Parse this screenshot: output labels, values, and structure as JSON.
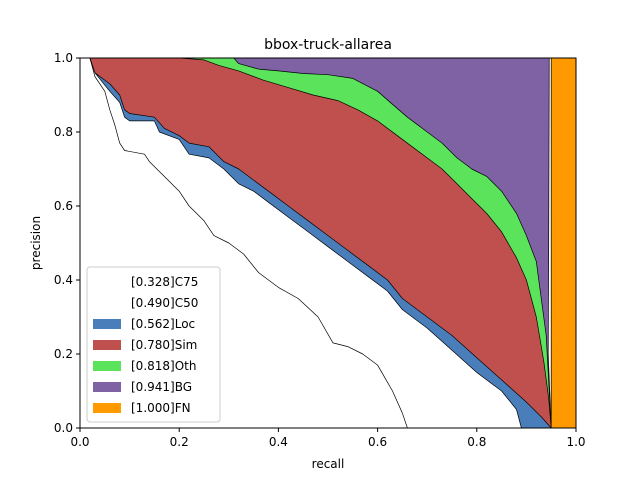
{
  "chart_data": {
    "type": "area",
    "title": "bbox-truck-allarea",
    "xlabel": "recall",
    "ylabel": "precision",
    "xlim": [
      0.0,
      1.0
    ],
    "ylim": [
      0.0,
      1.0
    ],
    "x_ticks": [
      "0.0",
      "0.2",
      "0.4",
      "0.6",
      "0.8",
      "1.0"
    ],
    "y_ticks": [
      "0.0",
      "0.2",
      "0.4",
      "0.6",
      "0.8",
      "1.0"
    ],
    "grid": false,
    "legend_position": "lower-left",
    "series": [
      {
        "name": "[1.000]FN",
        "color": "#FF9900",
        "filled": true,
        "points": [
          [
            0.0,
            1.0
          ],
          [
            0.95,
            1.0
          ],
          [
            0.95,
            0.0
          ],
          [
            1.0,
            0.0
          ],
          [
            1.0,
            1.0
          ]
        ]
      },
      {
        "name": "[0.941]BG",
        "color": "#7E62A4",
        "filled": true,
        "points": [
          [
            0.01,
            1.0
          ],
          [
            0.946,
            1.0
          ],
          [
            0.946,
            0.95
          ],
          [
            0.945,
            0.5
          ],
          [
            0.944,
            0.2
          ],
          [
            0.95,
            0.0
          ],
          [
            0.0,
            0.0
          ],
          [
            0.0,
            1.0
          ]
        ]
      },
      {
        "name": "[0.818]Oth",
        "color": "#5CE35C",
        "filled": true,
        "points": [
          [
            0.02,
            1.0
          ],
          [
            0.31,
            1.0
          ],
          [
            0.32,
            0.985
          ],
          [
            0.36,
            0.97
          ],
          [
            0.4,
            0.965
          ],
          [
            0.45,
            0.958
          ],
          [
            0.5,
            0.955
          ],
          [
            0.55,
            0.945
          ],
          [
            0.6,
            0.91
          ],
          [
            0.63,
            0.875
          ],
          [
            0.66,
            0.84
          ],
          [
            0.7,
            0.8
          ],
          [
            0.73,
            0.77
          ],
          [
            0.76,
            0.73
          ],
          [
            0.79,
            0.7
          ],
          [
            0.82,
            0.68
          ],
          [
            0.85,
            0.64
          ],
          [
            0.88,
            0.58
          ],
          [
            0.9,
            0.52
          ],
          [
            0.92,
            0.45
          ],
          [
            0.94,
            0.25
          ],
          [
            0.946,
            0.1
          ],
          [
            0.95,
            0.0
          ],
          [
            0.0,
            0.0
          ],
          [
            0.0,
            1.0
          ]
        ]
      },
      {
        "name": "[0.780]Sim",
        "color": "#C0504D",
        "filled": true,
        "points": [
          [
            0.02,
            1.0
          ],
          [
            0.15,
            1.0
          ],
          [
            0.2,
            1.0
          ],
          [
            0.25,
            0.995
          ],
          [
            0.28,
            0.98
          ],
          [
            0.32,
            0.965
          ],
          [
            0.37,
            0.94
          ],
          [
            0.42,
            0.92
          ],
          [
            0.47,
            0.9
          ],
          [
            0.52,
            0.885
          ],
          [
            0.56,
            0.86
          ],
          [
            0.6,
            0.83
          ],
          [
            0.64,
            0.79
          ],
          [
            0.67,
            0.76
          ],
          [
            0.7,
            0.73
          ],
          [
            0.73,
            0.7
          ],
          [
            0.76,
            0.66
          ],
          [
            0.79,
            0.62
          ],
          [
            0.82,
            0.58
          ],
          [
            0.85,
            0.53
          ],
          [
            0.88,
            0.46
          ],
          [
            0.9,
            0.4
          ],
          [
            0.92,
            0.3
          ],
          [
            0.935,
            0.18
          ],
          [
            0.945,
            0.08
          ],
          [
            0.95,
            0.0
          ],
          [
            0.0,
            0.0
          ],
          [
            0.0,
            1.0
          ]
        ]
      },
      {
        "name": "[0.562]Loc",
        "color": "#4A7EBB",
        "filled": true,
        "points": [
          [
            0.02,
            1.0
          ],
          [
            0.03,
            0.96
          ],
          [
            0.06,
            0.93
          ],
          [
            0.08,
            0.9
          ],
          [
            0.09,
            0.86
          ],
          [
            0.1,
            0.85
          ],
          [
            0.15,
            0.84
          ],
          [
            0.17,
            0.81
          ],
          [
            0.2,
            0.79
          ],
          [
            0.22,
            0.77
          ],
          [
            0.26,
            0.76
          ],
          [
            0.29,
            0.72
          ],
          [
            0.32,
            0.7
          ],
          [
            0.35,
            0.67
          ],
          [
            0.38,
            0.64
          ],
          [
            0.42,
            0.6
          ],
          [
            0.46,
            0.56
          ],
          [
            0.5,
            0.52
          ],
          [
            0.54,
            0.48
          ],
          [
            0.58,
            0.44
          ],
          [
            0.62,
            0.4
          ],
          [
            0.65,
            0.35
          ],
          [
            0.7,
            0.3
          ],
          [
            0.75,
            0.25
          ],
          [
            0.8,
            0.19
          ],
          [
            0.85,
            0.13
          ],
          [
            0.9,
            0.07
          ],
          [
            0.93,
            0.03
          ],
          [
            0.95,
            0.0
          ],
          [
            0.0,
            0.0
          ],
          [
            0.0,
            1.0
          ]
        ]
      },
      {
        "name": "[0.490]C50",
        "color": "#FFFFFF",
        "filled": true,
        "points": [
          [
            0.02,
            1.0
          ],
          [
            0.03,
            0.96
          ],
          [
            0.06,
            0.91
          ],
          [
            0.08,
            0.88
          ],
          [
            0.09,
            0.84
          ],
          [
            0.1,
            0.83
          ],
          [
            0.15,
            0.83
          ],
          [
            0.16,
            0.8
          ],
          [
            0.2,
            0.78
          ],
          [
            0.22,
            0.74
          ],
          [
            0.26,
            0.73
          ],
          [
            0.29,
            0.7
          ],
          [
            0.32,
            0.66
          ],
          [
            0.35,
            0.64
          ],
          [
            0.38,
            0.61
          ],
          [
            0.42,
            0.57
          ],
          [
            0.46,
            0.53
          ],
          [
            0.5,
            0.49
          ],
          [
            0.54,
            0.45
          ],
          [
            0.58,
            0.41
          ],
          [
            0.62,
            0.37
          ],
          [
            0.65,
            0.32
          ],
          [
            0.7,
            0.27
          ],
          [
            0.75,
            0.21
          ],
          [
            0.8,
            0.15
          ],
          [
            0.85,
            0.1
          ],
          [
            0.88,
            0.05
          ],
          [
            0.89,
            0.0
          ],
          [
            0.0,
            0.0
          ],
          [
            0.0,
            1.0
          ]
        ]
      },
      {
        "name": "[0.328]C75",
        "color": "#FFFFFF",
        "filled": false,
        "points": [
          [
            0.02,
            1.0
          ],
          [
            0.03,
            0.95
          ],
          [
            0.05,
            0.91
          ],
          [
            0.06,
            0.86
          ],
          [
            0.07,
            0.82
          ],
          [
            0.08,
            0.77
          ],
          [
            0.09,
            0.75
          ],
          [
            0.13,
            0.74
          ],
          [
            0.14,
            0.72
          ],
          [
            0.17,
            0.68
          ],
          [
            0.2,
            0.64
          ],
          [
            0.22,
            0.6
          ],
          [
            0.25,
            0.56
          ],
          [
            0.27,
            0.52
          ],
          [
            0.3,
            0.5
          ],
          [
            0.33,
            0.47
          ],
          [
            0.36,
            0.42
          ],
          [
            0.4,
            0.38
          ],
          [
            0.44,
            0.35
          ],
          [
            0.48,
            0.3
          ],
          [
            0.51,
            0.23
          ],
          [
            0.54,
            0.22
          ],
          [
            0.57,
            0.2
          ],
          [
            0.6,
            0.17
          ],
          [
            0.63,
            0.1
          ],
          [
            0.65,
            0.04
          ],
          [
            0.66,
            0.0
          ]
        ]
      }
    ]
  }
}
